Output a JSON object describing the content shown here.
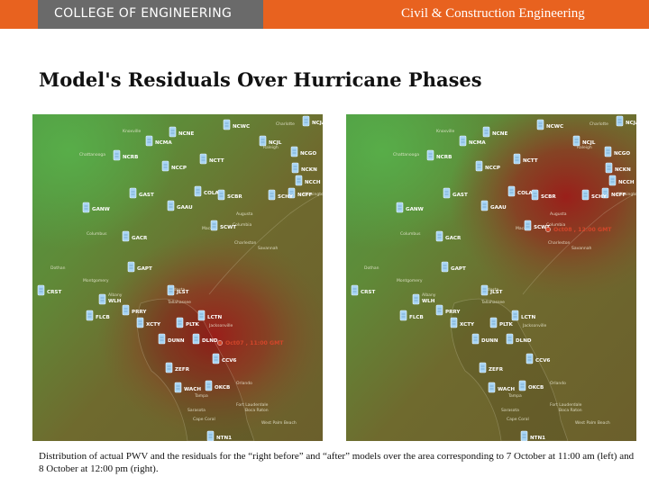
{
  "header": {
    "college": "COLLEGE OF ENGINEERING",
    "department": "Civil & Construction Engineering",
    "bar_color": "#e8621f",
    "logo_box_color": "#6a6a6a"
  },
  "title": "Model's Residuals Over Hurricane Phases",
  "maps": [
    {
      "stations": [
        "NCWC",
        "NCJA",
        "NCNE",
        "NCMA",
        "NCJL",
        "NCGO",
        "NCRB",
        "NCTT",
        "NCKN",
        "NCCP",
        "NCCH",
        "NCFF",
        "GAST",
        "COLA",
        "SCBR",
        "SCHY",
        "GAAU",
        "GANW",
        "SCWT",
        "GACR",
        "GAPT",
        "CRST",
        "JLST",
        "WLH",
        "PRRY",
        "FLCB",
        "XCTY",
        "PLTK",
        "LCTN",
        "DUNN",
        "DLND",
        "CCV6",
        "ZEFR",
        "WACH",
        "OKCB",
        "NTN1"
      ],
      "event_label": "Oct07 , 11:00 GMT",
      "places": [
        "Chattanooga",
        "Knoxville",
        "Charlotte",
        "Columbia",
        "Macon",
        "Montgomery",
        "Columbus",
        "Albany",
        "Dothan",
        "Tallahassee",
        "Valdosta",
        "Jacksonville",
        "Orlando",
        "Tampa",
        "Sarasota",
        "Cape Coral",
        "West Palm Beach",
        "Fort Lauderdale",
        "Boca Raton",
        "Savannah",
        "Charleston",
        "Wilmington",
        "Augusta",
        "Raleigh"
      ]
    },
    {
      "stations": [
        "NCWC",
        "NCJA",
        "NCNE",
        "NCMA",
        "NCJL",
        "NCGO",
        "NCRB",
        "NCTT",
        "NCKN",
        "NCCP",
        "NCCH",
        "NCFF",
        "GAST",
        "COLA",
        "SCBR",
        "SCHY",
        "GAAU",
        "GANW",
        "SCWT",
        "GACR",
        "GAPT",
        "CRST",
        "JLST",
        "WLH",
        "PRRY",
        "FLCB",
        "XCTY",
        "PLTK",
        "LCTN",
        "DUNN",
        "DLND",
        "CCV6",
        "ZEFR",
        "WACH",
        "OKCB",
        "NTN1"
      ],
      "event_label": "Oct08 , 12:00 GMT",
      "places": [
        "Chattanooga",
        "Knoxville",
        "Charlotte",
        "Columbia",
        "Macon",
        "Montgomery",
        "Columbus",
        "Albany",
        "Dothan",
        "Tallahassee",
        "Valdosta",
        "Jacksonville",
        "Orlando",
        "Tampa",
        "Sarasota",
        "Cape Coral",
        "West Palm Beach",
        "Fort Lauderdale",
        "Boca Raton",
        "Savannah",
        "Charleston",
        "Wilmington",
        "Augusta",
        "Raleigh"
      ]
    }
  ],
  "caption": "Distribution of actual PWV and the residuals for the “right before” and “after” models over the area corresponding to 7 October at 11:00 am (left) and 8 October at 12:00 pm (right)."
}
